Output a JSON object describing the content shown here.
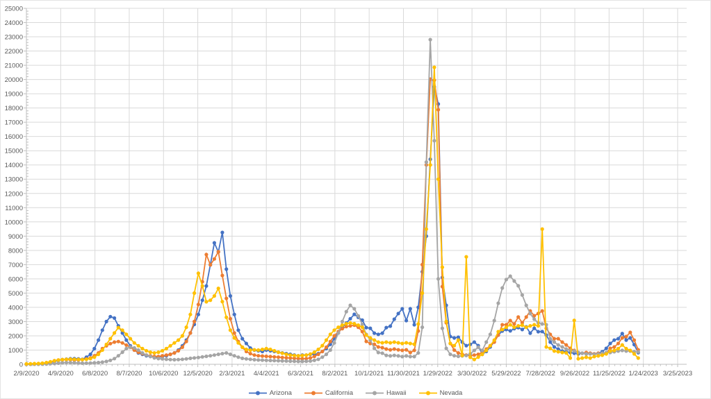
{
  "window": {
    "background": "#FFFFFF",
    "border_color": "#E3E3E3"
  },
  "chart_data": {
    "type": "line",
    "title": "",
    "xlabel": "",
    "ylabel": "",
    "ylim": [
      0,
      25000
    ],
    "y_tick_step": 1000,
    "y_minor_step": 200,
    "grid": true,
    "gridline_color": "#D9D9D9",
    "axis_line_color": "#BFBFBF",
    "axis_label_color": "#595959",
    "legend_position": "bottom-center",
    "marker": "circle",
    "x_tick_labels": [
      "2/9/2020",
      "4/9/2020",
      "6/8/2020",
      "8/7/2020",
      "10/6/2020",
      "12/5/2020",
      "2/3/2021",
      "4/4/2021",
      "6/3/2021",
      "8/2/2021",
      "10/1/2021",
      "11/30/2021",
      "1/29/2022",
      "3/30/2022",
      "5/29/2022",
      "7/28/2022",
      "9/26/2022",
      "11/25/2022",
      "1/24/2023",
      "3/25/2023"
    ],
    "x": [
      "2/9/2020",
      "2/16/2020",
      "2/23/2020",
      "3/1/2020",
      "3/8/2020",
      "3/15/2020",
      "3/22/2020",
      "3/29/2020",
      "4/5/2020",
      "4/12/2020",
      "4/19/2020",
      "4/26/2020",
      "5/3/2020",
      "5/10/2020",
      "5/17/2020",
      "5/24/2020",
      "5/31/2020",
      "6/7/2020",
      "6/14/2020",
      "6/21/2020",
      "6/28/2020",
      "7/5/2020",
      "7/12/2020",
      "7/19/2020",
      "7/26/2020",
      "8/2/2020",
      "8/9/2020",
      "8/16/2020",
      "8/23/2020",
      "8/30/2020",
      "9/6/2020",
      "9/13/2020",
      "9/20/2020",
      "9/27/2020",
      "10/4/2020",
      "10/11/2020",
      "10/18/2020",
      "10/25/2020",
      "11/1/2020",
      "11/8/2020",
      "11/15/2020",
      "11/22/2020",
      "11/29/2020",
      "12/6/2020",
      "12/13/2020",
      "12/20/2020",
      "12/27/2020",
      "1/3/2021",
      "1/10/2021",
      "1/17/2021",
      "1/24/2021",
      "1/31/2021",
      "2/7/2021",
      "2/14/2021",
      "2/21/2021",
      "2/28/2021",
      "3/7/2021",
      "3/14/2021",
      "3/21/2021",
      "3/28/2021",
      "4/4/2021",
      "4/11/2021",
      "4/18/2021",
      "4/25/2021",
      "5/2/2021",
      "5/9/2021",
      "5/16/2021",
      "5/23/2021",
      "5/30/2021",
      "6/6/2021",
      "6/13/2021",
      "6/20/2021",
      "6/27/2021",
      "7/4/2021",
      "7/11/2021",
      "7/18/2021",
      "7/25/2021",
      "8/1/2021",
      "8/8/2021",
      "8/15/2021",
      "8/22/2021",
      "8/29/2021",
      "9/5/2021",
      "9/12/2021",
      "9/19/2021",
      "9/26/2021",
      "10/3/2021",
      "10/10/2021",
      "10/17/2021",
      "10/24/2021",
      "10/31/2021",
      "11/7/2021",
      "11/14/2021",
      "11/21/2021",
      "11/28/2021",
      "12/5/2021",
      "12/12/2021",
      "12/19/2021",
      "12/26/2021",
      "1/2/2022",
      "1/9/2022",
      "1/16/2022",
      "1/23/2022",
      "1/30/2022",
      "2/6/2022",
      "2/13/2022",
      "2/20/2022",
      "2/27/2022",
      "3/6/2022",
      "3/13/2022",
      "3/20/2022",
      "3/27/2022",
      "4/3/2022",
      "4/10/2022",
      "4/17/2022",
      "4/24/2022",
      "5/1/2022",
      "5/8/2022",
      "5/15/2022",
      "5/22/2022",
      "5/29/2022",
      "6/5/2022",
      "6/12/2022",
      "6/19/2022",
      "6/26/2022",
      "7/3/2022",
      "7/10/2022",
      "7/17/2022",
      "7/24/2022",
      "7/31/2022",
      "8/7/2022",
      "8/14/2022",
      "8/21/2022",
      "8/28/2022",
      "9/4/2022",
      "9/11/2022",
      "9/18/2022",
      "9/25/2022",
      "10/2/2022",
      "10/9/2022",
      "10/16/2022",
      "10/23/2022",
      "10/30/2022",
      "11/6/2022",
      "11/13/2022",
      "11/20/2022",
      "11/27/2022",
      "12/4/2022",
      "12/11/2022",
      "12/18/2022",
      "12/25/2022",
      "1/1/2023",
      "1/8/2023",
      "1/15/2023"
    ],
    "series": [
      {
        "name": "Arizona",
        "color": "#4472C4",
        "values": [
          0,
          5,
          10,
          15,
          30,
          60,
          120,
          200,
          280,
          330,
          360,
          390,
          400,
          380,
          350,
          500,
          700,
          1100,
          1700,
          2400,
          3000,
          3350,
          3250,
          2700,
          2200,
          1700,
          1300,
          1000,
          800,
          700,
          600,
          550,
          500,
          500,
          550,
          600,
          700,
          800,
          1000,
          1300,
          1700,
          2200,
          2800,
          3500,
          4500,
          5500,
          7000,
          8530,
          7890,
          9260,
          6680,
          4800,
          3500,
          2400,
          1800,
          1460,
          1140,
          1000,
          950,
          900,
          1000,
          950,
          900,
          850,
          800,
          750,
          700,
          650,
          600,
          650,
          650,
          700,
          700,
          750,
          900,
          1100,
          1400,
          1800,
          2200,
          2600,
          2900,
          3200,
          3510,
          3300,
          3100,
          2580,
          2530,
          2190,
          2100,
          2190,
          2580,
          2680,
          3170,
          3560,
          3900,
          3070,
          3900,
          2780,
          4000,
          6500,
          9000,
          14400,
          19490,
          18280,
          6090,
          4140,
          1950,
          1850,
          1900,
          1560,
          1310,
          1400,
          1560,
          1310,
          700,
          900,
          1220,
          1600,
          2050,
          2340,
          2440,
          2350,
          2500,
          2580,
          2440,
          2630,
          2190,
          2530,
          2290,
          2300,
          2050,
          1560,
          1220,
          1070,
          930,
          880,
          830,
          780,
          730,
          780,
          730,
          780,
          730,
          780,
          880,
          1120,
          1460,
          1700,
          1800,
          2160,
          1700,
          1850,
          1380,
          815
        ]
      },
      {
        "name": "California",
        "color": "#ED7D31",
        "values": [
          0,
          5,
          10,
          20,
          40,
          80,
          150,
          250,
          300,
          320,
          330,
          320,
          300,
          310,
          330,
          380,
          450,
          600,
          800,
          1100,
          1300,
          1450,
          1560,
          1600,
          1500,
          1350,
          1200,
          1000,
          850,
          750,
          650,
          600,
          550,
          550,
          600,
          650,
          700,
          800,
          950,
          1200,
          1600,
          2200,
          3000,
          4200,
          5800,
          7710,
          6980,
          7400,
          7910,
          6240,
          4630,
          3200,
          2200,
          1600,
          1200,
          900,
          750,
          650,
          600,
          580,
          560,
          540,
          520,
          500,
          480,
          460,
          440,
          420,
          400,
          390,
          400,
          450,
          550,
          700,
          900,
          1200,
          1600,
          2000,
          2300,
          2500,
          2650,
          2700,
          2750,
          2600,
          2300,
          1610,
          1460,
          1410,
          1220,
          1170,
          1070,
          1020,
          1070,
          1020,
          980,
          1020,
          830,
          980,
          2340,
          7000,
          14000,
          20030,
          19950,
          17880,
          5460,
          2920,
          1460,
          1000,
          800,
          700,
          650,
          600,
          650,
          700,
          830,
          1070,
          1310,
          1560,
          2050,
          2780,
          2780,
          3070,
          2830,
          3320,
          2920,
          3320,
          3750,
          3410,
          3560,
          3750,
          2530,
          2100,
          1800,
          1800,
          1560,
          1360,
          1120,
          975,
          830,
          780,
          830,
          780,
          730,
          780,
          730,
          780,
          1120,
          1220,
          1460,
          1850,
          1950,
          2240,
          1700,
          1020
        ]
      },
      {
        "name": "Hawaii",
        "color": "#A5A5A5",
        "values": [
          0,
          0,
          5,
          5,
          10,
          20,
          40,
          60,
          80,
          100,
          120,
          110,
          100,
          90,
          80,
          80,
          90,
          100,
          120,
          150,
          200,
          280,
          400,
          600,
          850,
          1100,
          1220,
          1150,
          1000,
          800,
          650,
          550,
          450,
          400,
          380,
          350,
          330,
          320,
          330,
          350,
          380,
          420,
          450,
          480,
          520,
          560,
          600,
          650,
          700,
          750,
          800,
          700,
          600,
          500,
          420,
          380,
          350,
          320,
          300,
          290,
          280,
          270,
          260,
          250,
          240,
          230,
          220,
          210,
          200,
          200,
          210,
          230,
          280,
          350,
          500,
          700,
          1000,
          1500,
          2200,
          3000,
          3700,
          4140,
          3900,
          3400,
          2800,
          2100,
          1700,
          1120,
          830,
          780,
          630,
          590,
          630,
          590,
          540,
          590,
          540,
          540,
          800,
          2600,
          14200,
          22800,
          15700,
          6000,
          2530,
          1120,
          700,
          600,
          560,
          590,
          620,
          730,
          975,
          1200,
          975,
          1560,
          2100,
          3070,
          4290,
          5360,
          5950,
          6190,
          5850,
          5510,
          4870,
          4140,
          3560,
          3170,
          2920,
          2830,
          2780,
          1800,
          1560,
          1360,
          1220,
          1070,
          975,
          930,
          830,
          780,
          730,
          730,
          700,
          730,
          780,
          830,
          830,
          880,
          930,
          975,
          930,
          930,
          880,
          875
        ]
      },
      {
        "name": "Nevada",
        "color": "#FFC000",
        "values": [
          30,
          40,
          50,
          60,
          80,
          120,
          180,
          250,
          300,
          330,
          350,
          360,
          350,
          340,
          330,
          350,
          400,
          500,
          700,
          1000,
          1400,
          1800,
          2200,
          2580,
          2400,
          2100,
          1800,
          1500,
          1300,
          1100,
          950,
          850,
          800,
          850,
          950,
          1100,
          1300,
          1500,
          1700,
          2000,
          2600,
          3500,
          5000,
          6390,
          5500,
          4390,
          4500,
          4800,
          5330,
          4400,
          3300,
          2400,
          1850,
          1500,
          1200,
          1050,
          1000,
          1020,
          1000,
          1050,
          1100,
          1050,
          950,
          850,
          780,
          700,
          650,
          620,
          600,
          620,
          650,
          720,
          850,
          1050,
          1310,
          1700,
          2100,
          2400,
          2600,
          2750,
          2850,
          2900,
          2850,
          2750,
          2600,
          2050,
          1850,
          1700,
          1560,
          1510,
          1560,
          1510,
          1560,
          1510,
          1460,
          1510,
          1460,
          1410,
          2830,
          5000,
          9500,
          14000,
          20860,
          13000,
          6820,
          3000,
          1460,
          1310,
          1700,
          620,
          7550,
          490,
          340,
          500,
          700,
          975,
          1300,
          1700,
          2290,
          2440,
          2600,
          2780,
          2600,
          2700,
          2750,
          2600,
          2700,
          2780,
          2700,
          9500,
          1220,
          1120,
          930,
          880,
          830,
          800,
          440,
          3085,
          390,
          440,
          490,
          440,
          540,
          590,
          640,
          730,
          930,
          975,
          1100,
          1360,
          1100,
          975,
          730,
          440
        ]
      }
    ]
  }
}
